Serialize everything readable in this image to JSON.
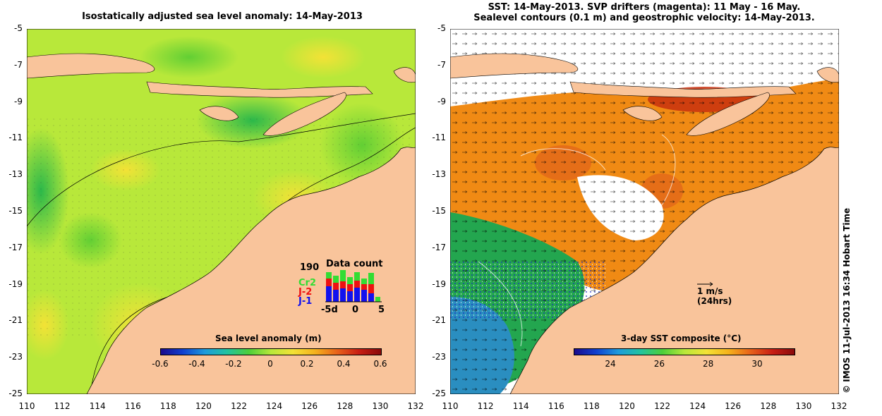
{
  "left_panel": {
    "title": "Isostatically adjusted sea level anomaly: 14-May-2013",
    "colorbar": {
      "title": "Sea level anomaly (m)",
      "ticks": [
        "-0.6",
        "-0.4",
        "-0.2",
        "0",
        "0.2",
        "0.4",
        "0.6"
      ],
      "range": [
        -0.6,
        0.6
      ]
    },
    "data_count": {
      "title": "Data count",
      "max_label": "190",
      "missions": [
        {
          "name": "Cr2",
          "color": "#33dd33"
        },
        {
          "name": "J-2",
          "color": "#ee1111"
        },
        {
          "name": "J-1",
          "color": "#1111ee"
        }
      ],
      "x_labels": [
        "-5d",
        "0",
        "5"
      ]
    }
  },
  "right_panel": {
    "title_line1": "SST: 14-May-2013. SVP drifters (magenta): 11 May - 16 May.",
    "title_line2": "Sealevel contours (0.1 m) and geostrophic velocity: 14-May-2013.",
    "colorbar": {
      "title": "3-day SST composite (°C)",
      "ticks": [
        "24",
        "26",
        "28",
        "30"
      ],
      "range": [
        22.5,
        31.5
      ]
    },
    "velocity_legend": {
      "line1": "1 m/s",
      "line2": "(24hrs)"
    }
  },
  "axes": {
    "lon_ticks": [
      "110",
      "112",
      "114",
      "116",
      "118",
      "120",
      "122",
      "124",
      "126",
      "128",
      "130",
      "132"
    ],
    "lat_ticks": [
      "-5",
      "-7",
      "-9",
      "-11",
      "-13",
      "-15",
      "-17",
      "-19",
      "-21",
      "-23",
      "-25"
    ]
  },
  "credit": "© IMOS 11-Jul-2013 16:34 Hobart Time",
  "colors": {
    "land": "#f9c49b",
    "sla_ocean": "#b8e83a",
    "sst_warm": "#f08a14",
    "sst_cool": "#23a64f"
  }
}
